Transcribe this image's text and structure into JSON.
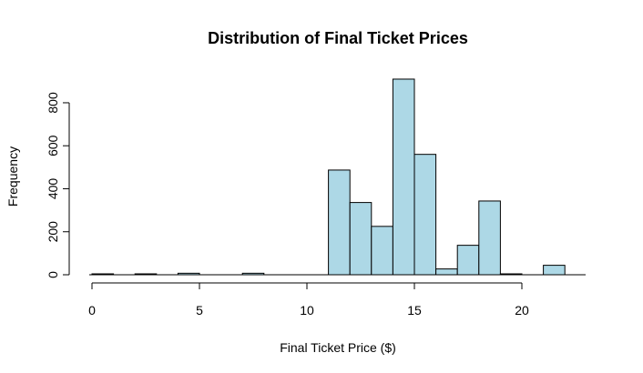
{
  "chart_data": {
    "type": "bar",
    "title": "Distribution of Final Ticket Prices",
    "xlabel": "Final Ticket Price ($)",
    "ylabel": "Frequency",
    "bar_color": "#add8e6",
    "bar_border": "#000000",
    "grid": false,
    "xlim": [
      0,
      23
    ],
    "ylim": [
      0,
      910
    ],
    "x_ticks": [
      "0",
      "5",
      "10",
      "15",
      "20"
    ],
    "y_ticks": [
      "0",
      "200",
      "400",
      "600",
      "800"
    ],
    "bins": [
      {
        "x0": 0,
        "x1": 1,
        "count": 4
      },
      {
        "x0": 1,
        "x1": 2,
        "count": 0
      },
      {
        "x0": 2,
        "x1": 3,
        "count": 3
      },
      {
        "x0": 3,
        "x1": 4,
        "count": 0
      },
      {
        "x0": 4,
        "x1": 5,
        "count": 7
      },
      {
        "x0": 5,
        "x1": 6,
        "count": 0
      },
      {
        "x0": 6,
        "x1": 7,
        "count": 0
      },
      {
        "x0": 7,
        "x1": 8,
        "count": 7
      },
      {
        "x0": 8,
        "x1": 9,
        "count": 0
      },
      {
        "x0": 9,
        "x1": 10,
        "count": 0
      },
      {
        "x0": 10,
        "x1": 11,
        "count": 0
      },
      {
        "x0": 11,
        "x1": 12,
        "count": 487
      },
      {
        "x0": 12,
        "x1": 13,
        "count": 336
      },
      {
        "x0": 13,
        "x1": 14,
        "count": 225
      },
      {
        "x0": 14,
        "x1": 15,
        "count": 910
      },
      {
        "x0": 15,
        "x1": 16,
        "count": 560
      },
      {
        "x0": 16,
        "x1": 17,
        "count": 27
      },
      {
        "x0": 17,
        "x1": 18,
        "count": 137
      },
      {
        "x0": 18,
        "x1": 19,
        "count": 343
      },
      {
        "x0": 19,
        "x1": 20,
        "count": 3
      },
      {
        "x0": 20,
        "x1": 21,
        "count": 0
      },
      {
        "x0": 21,
        "x1": 22,
        "count": 44
      }
    ]
  }
}
